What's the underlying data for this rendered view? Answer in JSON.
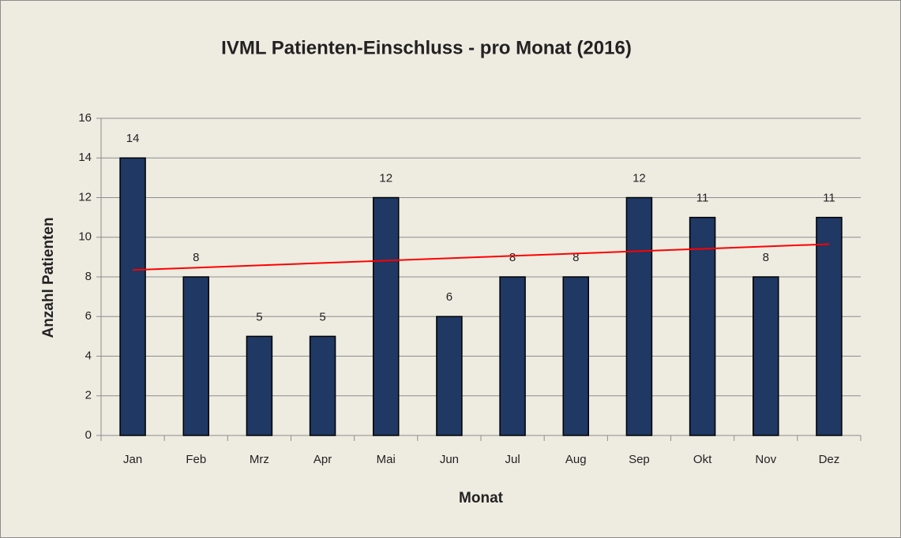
{
  "chart_data": {
    "type": "bar",
    "title": "IVML Patienten-Einschluss  - pro Monat (2016)",
    "x_label": "Monat",
    "y_label": "Anzahl Patienten",
    "categories": [
      "Jan",
      "Feb",
      "Mrz",
      "Apr",
      "Mai",
      "Jun",
      "Jul",
      "Aug",
      "Sep",
      "Okt",
      "Nov",
      "Dez"
    ],
    "values": [
      14,
      8,
      5,
      5,
      12,
      6,
      8,
      8,
      12,
      11,
      8,
      11
    ],
    "color": "#1f3864",
    "ylim": [
      0,
      16
    ],
    "yticks": [
      0,
      2,
      4,
      6,
      8,
      10,
      12,
      14,
      16
    ],
    "grid": true,
    "data_labels": true,
    "trendline": "linear",
    "trendline_color": "#ff0000"
  }
}
